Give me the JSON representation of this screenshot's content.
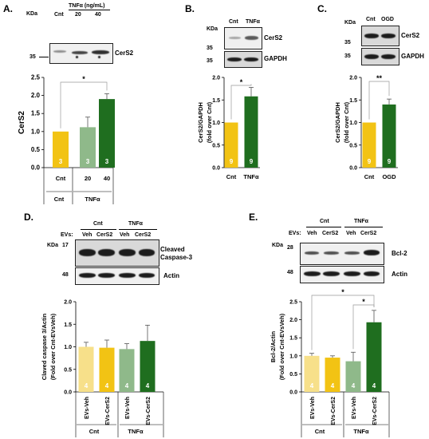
{
  "panels": [
    {
      "id": "A",
      "label": "A.",
      "blot": {
        "kda": "KDa",
        "header": "TNFα (ng/mL)",
        "lanes": [
          "Cnt",
          "20",
          "40"
        ],
        "markers": [
          "35"
        ],
        "protein": "CerS2"
      },
      "chart": {
        "ylabel": "CerS2",
        "ylim": [
          0,
          2.5
        ],
        "yticks": [
          "0.0",
          "0.5",
          "1.0",
          "1.5",
          "2.0",
          "2.5"
        ],
        "categories": [
          "Cnt",
          "20",
          "40"
        ],
        "values": [
          1.0,
          1.12,
          1.9
        ],
        "errors": [
          0.0,
          0.28,
          0.15
        ],
        "n": [
          "3",
          "3",
          "3"
        ],
        "colors": [
          "#f2c314",
          "#8fb98a",
          "#1f6e1f"
        ],
        "groups": [
          "Cnt",
          "TNFα"
        ],
        "significance": [
          "*"
        ]
      }
    },
    {
      "id": "B",
      "label": "B.",
      "blot": {
        "kda": "KDa",
        "lanes": [
          "Cnt",
          "TNFα"
        ],
        "markers": [
          "35",
          "35"
        ],
        "proteins": [
          "CerS2",
          "GAPDH"
        ]
      },
      "chart": {
        "ylabel": "CerS2/GAPDH",
        "ylabel2": "(fold over Cnt)",
        "ylim": [
          0,
          2.0
        ],
        "yticks": [
          "0.0",
          "0.5",
          "1.0",
          "1.5",
          "2.0"
        ],
        "categories": [
          "Cnt",
          "TNFα"
        ],
        "values": [
          1.0,
          1.58
        ],
        "errors": [
          0.0,
          0.2
        ],
        "n": [
          "9",
          "9"
        ],
        "colors": [
          "#f2c314",
          "#1f6e1f"
        ],
        "significance": [
          "*"
        ]
      }
    },
    {
      "id": "C",
      "label": "C.",
      "blot": {
        "kda": "KDa",
        "lanes": [
          "Cnt",
          "OGD"
        ],
        "markers": [
          "35",
          "35"
        ],
        "proteins": [
          "CerS2",
          "GAPDH"
        ]
      },
      "chart": {
        "ylabel": "CerS2/GAPDH",
        "ylabel2": "(fold over Cnt)",
        "ylim": [
          0,
          2.0
        ],
        "yticks": [
          "0.0",
          "0.5",
          "1.0",
          "1.5",
          "2.0"
        ],
        "categories": [
          "Cnt",
          "OGD"
        ],
        "values": [
          1.0,
          1.4
        ],
        "errors": [
          0.0,
          0.12
        ],
        "n": [
          "9",
          "9"
        ],
        "colors": [
          "#f2c314",
          "#1f6e1f"
        ],
        "significance": [
          "**"
        ]
      }
    },
    {
      "id": "D",
      "label": "D.",
      "blot": {
        "kda": "KDa",
        "evs": "EVs:",
        "groups": [
          "Cnt",
          "TNFα"
        ],
        "lanes": [
          "Veh",
          "CerS2",
          "Veh",
          "CerS2"
        ],
        "markers": [
          "17",
          "48"
        ],
        "proteins": [
          "Cleaved",
          "Caspase-3",
          "Actin"
        ]
      },
      "chart": {
        "ylabel": "Claved caspase 3/Actin",
        "ylabel2": "(Fold over Cnt-EVsVeh)",
        "ylim": [
          0,
          2.0
        ],
        "yticks": [
          "0.0",
          "0.5",
          "1.0",
          "1.5",
          "2.0"
        ],
        "categories": [
          "EVs-Veh",
          "EVs-CerS2",
          "EVs-Veh",
          "EVs-CerS2"
        ],
        "values": [
          1.0,
          0.98,
          0.95,
          1.13
        ],
        "errors": [
          0.1,
          0.17,
          0.12,
          0.35
        ],
        "n": [
          "4",
          "4",
          "4",
          "4"
        ],
        "colors": [
          "#f7e08a",
          "#f2c314",
          "#8fb98a",
          "#1f6e1f"
        ],
        "groups": [
          "Cnt",
          "TNFα"
        ]
      }
    },
    {
      "id": "E",
      "label": "E.",
      "blot": {
        "kda": "KDa",
        "evs": "EVs:",
        "groups": [
          "Cnt",
          "TNFα"
        ],
        "lanes": [
          "Veh",
          "CerS2",
          "Veh",
          "CerS2"
        ],
        "markers": [
          "28",
          "48"
        ],
        "proteins": [
          "Bcl-2",
          "Actin"
        ]
      },
      "chart": {
        "ylabel": "Bcl-2/Actin",
        "ylabel2": "(Fold over Cnt-EVsVeh)",
        "ylim": [
          0,
          2.5
        ],
        "yticks": [
          "0.0",
          "0.5",
          "1.0",
          "1.5",
          "2.0",
          "2.5"
        ],
        "categories": [
          "EVs-Veh",
          "EVs-CerS2",
          "EVs-Veh",
          "EVs-CerS2"
        ],
        "values": [
          1.0,
          0.95,
          0.85,
          1.93
        ],
        "errors": [
          0.07,
          0.05,
          0.25,
          0.33
        ],
        "n": [
          "4",
          "4",
          "4",
          "4"
        ],
        "colors": [
          "#f7e08a",
          "#f2c314",
          "#8fb98a",
          "#1f6e1f"
        ],
        "groups": [
          "Cnt",
          "TNFα"
        ],
        "significance": [
          "*",
          "*"
        ]
      }
    }
  ],
  "chart_data": [
    {
      "type": "bar",
      "panel": "A",
      "categories": [
        "Cnt",
        "20",
        "40"
      ],
      "values": [
        1.0,
        1.12,
        1.9
      ],
      "errors": [
        0.0,
        0.28,
        0.15
      ],
      "ylabel": "CerS2",
      "ylim": [
        0,
        2.5
      ]
    },
    {
      "type": "bar",
      "panel": "B",
      "categories": [
        "Cnt",
        "TNFα"
      ],
      "values": [
        1.0,
        1.58
      ],
      "errors": [
        0.0,
        0.2
      ],
      "ylabel": "CerS2/GAPDH (fold over Cnt)",
      "ylim": [
        0,
        2.0
      ]
    },
    {
      "type": "bar",
      "panel": "C",
      "categories": [
        "Cnt",
        "OGD"
      ],
      "values": [
        1.0,
        1.4
      ],
      "errors": [
        0.0,
        0.12
      ],
      "ylabel": "CerS2/GAPDH (fold over Cnt)",
      "ylim": [
        0,
        2.0
      ]
    },
    {
      "type": "bar",
      "panel": "D",
      "categories": [
        "EVs-Veh",
        "EVs-CerS2",
        "EVs-Veh",
        "EVs-CerS2"
      ],
      "values": [
        1.0,
        0.98,
        0.95,
        1.13
      ],
      "errors": [
        0.1,
        0.17,
        0.12,
        0.35
      ],
      "ylabel": "Claved caspase 3/Actin (Fold over Cnt-EVsVeh)",
      "ylim": [
        0,
        2.0
      ]
    },
    {
      "type": "bar",
      "panel": "E",
      "categories": [
        "EVs-Veh",
        "EVs-CerS2",
        "EVs-Veh",
        "EVs-CerS2"
      ],
      "values": [
        1.0,
        0.95,
        0.85,
        1.93
      ],
      "errors": [
        0.07,
        0.05,
        0.25,
        0.33
      ],
      "ylabel": "Bcl-2/Actin (Fold over Cnt-EVsVeh)",
      "ylim": [
        0,
        2.5
      ]
    }
  ]
}
